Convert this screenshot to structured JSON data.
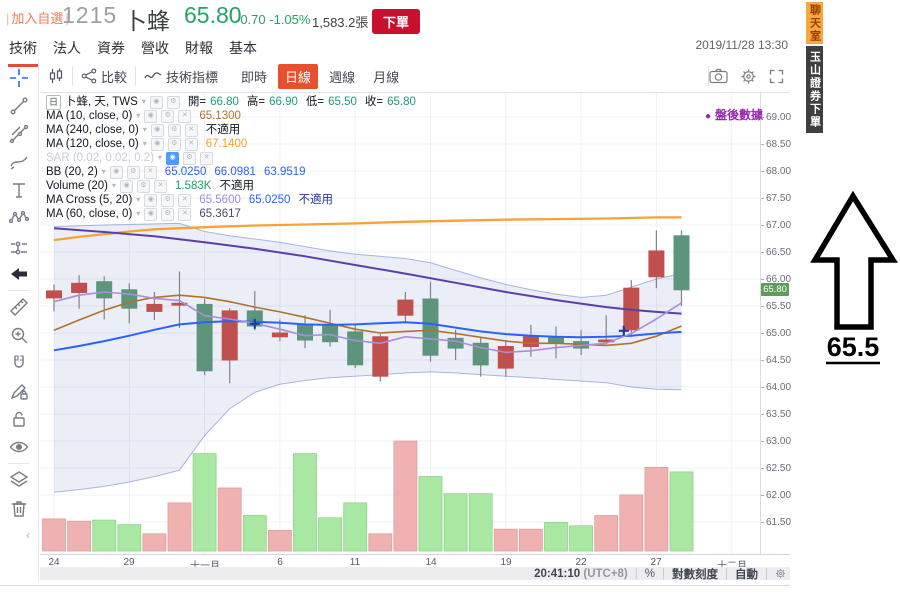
{
  "header": {
    "add_watchlist": "加入自選",
    "code": "1215",
    "name": "卜蜂",
    "price": "65.80",
    "change": "-0.70",
    "change_pct": "-1.05%",
    "volume": "1,583.2張",
    "order_button": "下單",
    "datetime": "2019/11/28 13:30",
    "up_down_color": "#21a567"
  },
  "nav": {
    "tabs": [
      {
        "label": "技術",
        "active": true
      },
      {
        "label": "法人",
        "active": false
      },
      {
        "label": "資券",
        "active": false
      },
      {
        "label": "營收",
        "active": false
      },
      {
        "label": "財報",
        "active": false
      },
      {
        "label": "基本",
        "active": false
      }
    ]
  },
  "chart_toolbar": {
    "compare": "比較",
    "indicators": "技術指標",
    "intervals": [
      {
        "label": "即時",
        "active": false
      },
      {
        "label": "日線",
        "active": true
      },
      {
        "label": "週線",
        "active": false
      },
      {
        "label": "月線",
        "active": false
      }
    ],
    "active_color": "#e8502d",
    "icons": [
      "camera-icon",
      "gear-icon",
      "fullscreen-icon"
    ]
  },
  "sidebar_tools": [
    "cursor-crosshair",
    "trend-line",
    "gann-fibonacci",
    "brush",
    "text",
    "xabcd-pattern",
    "forecast",
    "arrow-marker",
    "ruler",
    "zoom-in",
    "magnet",
    "drawing-lock",
    "lock",
    "hide-drawings",
    "layers",
    "remove-drawings"
  ],
  "legend": {
    "interval_badge": "日",
    "title": "卜蜂, 天, TWS",
    "ohlc": [
      {
        "k": "開=",
        "v": "66.80"
      },
      {
        "k": "高=",
        "v": "66.90"
      },
      {
        "k": "低=",
        "v": "65.50"
      },
      {
        "k": "收=",
        "v": "65.80"
      }
    ],
    "rows": [
      {
        "name": "MA (10, close, 0)",
        "hidden": false,
        "values": [
          {
            "t": "65.1300",
            "c": "#b0732a"
          }
        ]
      },
      {
        "name": "MA (240, close, 0)",
        "hidden": false,
        "values": [
          {
            "t": "不適用",
            "c": "#131722"
          }
        ]
      },
      {
        "name": "MA (120, close, 0)",
        "hidden": false,
        "values": [
          {
            "t": "67.1400",
            "c": "#f59e2c"
          }
        ]
      },
      {
        "name": "SAR (0.02, 0.02, 0.2)",
        "hidden": true,
        "values": []
      },
      {
        "name": "BB (20, 2)",
        "hidden": false,
        "values": [
          {
            "t": "65.0250",
            "c": "#2962ff"
          },
          {
            "t": "66.0981",
            "c": "#2962ff"
          },
          {
            "t": "63.9519",
            "c": "#2962ff"
          }
        ]
      },
      {
        "name": "Volume (20)",
        "hidden": false,
        "values": [
          {
            "t": "1.583K",
            "c": "#23a05c"
          },
          {
            "t": "不適用",
            "c": "#131722"
          }
        ]
      },
      {
        "name": "MA Cross (5, 20)",
        "hidden": false,
        "values": [
          {
            "t": "65.5600",
            "c": "#9f8ce0"
          },
          {
            "t": "65.0250",
            "c": "#2962ff"
          },
          {
            "t": "不適用",
            "c": "#283593"
          }
        ]
      },
      {
        "name": "MA (60, close, 0)",
        "hidden": false,
        "values": [
          {
            "t": "65.3617",
            "c": "#4f4a63"
          }
        ]
      }
    ]
  },
  "after_hours_label": "盤後數據",
  "side_tabs": {
    "chat": "聊天室",
    "broker": "玉山證券下單"
  },
  "annotation": {
    "arrow_direction": "up",
    "value": "65.5"
  },
  "bottom_bar": {
    "time": "20:41:10",
    "timezone": "(UTC+8)",
    "percent": "%",
    "log_scale": "對數刻度",
    "auto": "自動"
  },
  "chart_data": {
    "type": "candlestick+volume",
    "title": "1215 卜蜂 日線 (TWS)",
    "grid": true,
    "up_color": "#c0504e",
    "down_color": "#5d957c",
    "last_price": "65.80",
    "y_axis": {
      "min": 61.5,
      "max": 69,
      "step": 0.5,
      "labels": [
        "69.00",
        "68.50",
        "68.00",
        "67.50",
        "67.00",
        "66.50",
        "66.00",
        "65.50",
        "65.00",
        "64.50",
        "64.00",
        "63.50",
        "63.00",
        "62.50",
        "62.00",
        "61.50"
      ]
    },
    "x_labels": [
      {
        "index": 0,
        "label": "24"
      },
      {
        "index": 3,
        "label": "29"
      },
      {
        "index": 6,
        "label": "十一月"
      },
      {
        "index": 9,
        "label": "6"
      },
      {
        "index": 12,
        "label": "11"
      },
      {
        "index": 15,
        "label": "14"
      },
      {
        "index": 18,
        "label": "19"
      },
      {
        "index": 21,
        "label": "22"
      },
      {
        "index": 24,
        "label": "27"
      },
      {
        "index": 27,
        "label": "十二月"
      }
    ],
    "candles": [
      {
        "date": "10/24",
        "o": 65.65,
        "h": 65.9,
        "l": 65.4,
        "c": 65.78
      },
      {
        "date": "10/25",
        "o": 65.75,
        "h": 66.07,
        "l": 65.45,
        "c": 65.92
      },
      {
        "date": "10/28",
        "o": 65.95,
        "h": 66.05,
        "l": 65.25,
        "c": 65.65
      },
      {
        "date": "10/29",
        "o": 65.8,
        "h": 65.92,
        "l": 65.18,
        "c": 65.46
      },
      {
        "date": "10/30",
        "o": 65.4,
        "h": 65.76,
        "l": 65.24,
        "c": 65.53
      },
      {
        "date": "10/31",
        "o": 65.53,
        "h": 66.14,
        "l": 65.09,
        "c": 65.55
      },
      {
        "date": "11/01",
        "o": 65.53,
        "h": 65.63,
        "l": 64.22,
        "c": 64.3
      },
      {
        "date": "11/04",
        "o": 64.5,
        "h": 65.46,
        "l": 64.07,
        "c": 65.41
      },
      {
        "date": "11/05",
        "o": 65.41,
        "h": 65.78,
        "l": 65.05,
        "c": 65.13
      },
      {
        "date": "11/06",
        "o": 64.93,
        "h": 65.25,
        "l": 64.85,
        "c": 65.0
      },
      {
        "date": "11/07",
        "o": 65.15,
        "h": 65.33,
        "l": 64.72,
        "c": 64.87
      },
      {
        "date": "11/08",
        "o": 65.13,
        "h": 65.43,
        "l": 64.75,
        "c": 64.84
      },
      {
        "date": "11/11",
        "o": 65.02,
        "h": 65.15,
        "l": 64.35,
        "c": 64.41
      },
      {
        "date": "11/12",
        "o": 64.2,
        "h": 64.98,
        "l": 64.1,
        "c": 64.93
      },
      {
        "date": "11/13",
        "o": 65.33,
        "h": 65.76,
        "l": 65.21,
        "c": 65.61
      },
      {
        "date": "11/14",
        "o": 65.63,
        "h": 65.95,
        "l": 64.47,
        "c": 64.59
      },
      {
        "date": "11/15",
        "o": 64.9,
        "h": 65.06,
        "l": 64.5,
        "c": 64.72
      },
      {
        "date": "11/18",
        "o": 64.81,
        "h": 64.93,
        "l": 64.19,
        "c": 64.41
      },
      {
        "date": "11/19",
        "o": 64.35,
        "h": 64.87,
        "l": 64.19,
        "c": 64.75
      },
      {
        "date": "11/20",
        "o": 64.75,
        "h": 65.15,
        "l": 64.56,
        "c": 64.93
      },
      {
        "date": "11/21",
        "o": 64.93,
        "h": 65.12,
        "l": 64.53,
        "c": 64.81
      },
      {
        "date": "11/22",
        "o": 64.84,
        "h": 65.06,
        "l": 64.59,
        "c": 64.72
      },
      {
        "date": "11/25",
        "o": 64.87,
        "h": 65.33,
        "l": 64.79,
        "c": 64.87
      },
      {
        "date": "11/26",
        "o": 65.06,
        "h": 65.98,
        "l": 64.93,
        "c": 65.83
      },
      {
        "date": "11/27",
        "o": 66.04,
        "h": 66.9,
        "l": 65.83,
        "c": 66.52
      },
      {
        "date": "11/28",
        "o": 66.8,
        "h": 66.9,
        "l": 65.5,
        "c": 65.8
      }
    ],
    "volumes": [
      642,
      596,
      619,
      528,
      344,
      963,
      1950,
      1262,
      711,
      413,
      1950,
      665,
      963,
      344,
      2202,
      1491,
      1147,
      1147,
      436,
      436,
      573,
      505,
      711,
      1124,
      1674,
      1583
    ],
    "vol_max": 2202,
    "vol_up_color": "#efb2b0",
    "vol_down_color": "#a9e8a3",
    "overlays": {
      "ma5": {
        "color": "#a88fd8",
        "width": 1.6,
        "points": [
          [
            0,
            65.58
          ],
          [
            1,
            65.7
          ],
          [
            2,
            65.76
          ],
          [
            3,
            65.72
          ],
          [
            4,
            65.64
          ],
          [
            5,
            65.6
          ],
          [
            6,
            65.32
          ],
          [
            7,
            65.26
          ],
          [
            8,
            65.18
          ],
          [
            9,
            65.07
          ],
          [
            10,
            64.95
          ],
          [
            11,
            64.97
          ],
          [
            12,
            64.86
          ],
          [
            13,
            64.81
          ],
          [
            14,
            64.93
          ],
          [
            15,
            64.89
          ],
          [
            16,
            64.85
          ],
          [
            17,
            64.73
          ],
          [
            18,
            64.64
          ],
          [
            19,
            64.67
          ],
          [
            20,
            64.73
          ],
          [
            21,
            64.77
          ],
          [
            22,
            64.81
          ],
          [
            23,
            64.99
          ],
          [
            24,
            65.26
          ],
          [
            25,
            65.56
          ]
        ]
      },
      "ma10": {
        "color": "#b0732a",
        "width": 1.6,
        "points": [
          [
            0,
            65.05
          ],
          [
            1,
            65.24
          ],
          [
            2,
            65.42
          ],
          [
            3,
            65.57
          ],
          [
            4,
            65.66
          ],
          [
            5,
            65.7
          ],
          [
            6,
            65.66
          ],
          [
            7,
            65.58
          ],
          [
            8,
            65.48
          ],
          [
            9,
            65.39
          ],
          [
            10,
            65.29
          ],
          [
            11,
            65.18
          ],
          [
            12,
            65.07
          ],
          [
            13,
            65.0
          ],
          [
            14,
            65.03
          ],
          [
            15,
            65.05
          ],
          [
            16,
            64.99
          ],
          [
            17,
            64.92
          ],
          [
            18,
            64.85
          ],
          [
            19,
            64.81
          ],
          [
            20,
            64.81
          ],
          [
            21,
            64.79
          ],
          [
            22,
            64.77
          ],
          [
            23,
            64.81
          ],
          [
            24,
            64.94
          ],
          [
            25,
            65.13
          ]
        ]
      },
      "ma20": {
        "color": "#2962ff",
        "width": 2,
        "points": [
          [
            0,
            64.68
          ],
          [
            1,
            64.76
          ],
          [
            2,
            64.85
          ],
          [
            3,
            64.95
          ],
          [
            4,
            65.06
          ],
          [
            5,
            65.16
          ],
          [
            6,
            65.2
          ],
          [
            7,
            65.22
          ],
          [
            8,
            65.21
          ],
          [
            9,
            65.19
          ],
          [
            10,
            65.16
          ],
          [
            11,
            65.15
          ],
          [
            12,
            65.16
          ],
          [
            13,
            65.18
          ],
          [
            14,
            65.2
          ],
          [
            15,
            65.17
          ],
          [
            16,
            65.1
          ],
          [
            17,
            65.03
          ],
          [
            18,
            64.98
          ],
          [
            19,
            64.95
          ],
          [
            20,
            64.93
          ],
          [
            21,
            64.92
          ],
          [
            22,
            64.93
          ],
          [
            23,
            64.95
          ],
          [
            24,
            64.99
          ],
          [
            25,
            65.02
          ]
        ]
      },
      "ma60": {
        "color": "#5b3fa8",
        "width": 2,
        "points": [
          [
            0,
            66.94
          ],
          [
            2,
            66.87
          ],
          [
            4,
            66.79
          ],
          [
            6,
            66.68
          ],
          [
            8,
            66.56
          ],
          [
            10,
            66.42
          ],
          [
            12,
            66.26
          ],
          [
            14,
            66.1
          ],
          [
            16,
            65.93
          ],
          [
            18,
            65.76
          ],
          [
            20,
            65.61
          ],
          [
            22,
            65.48
          ],
          [
            23,
            65.43
          ],
          [
            24,
            65.39
          ],
          [
            25,
            65.36
          ]
        ]
      },
      "ma120": {
        "color": "#f7a239",
        "width": 2.3,
        "points": [
          [
            0,
            66.72
          ],
          [
            1,
            66.78
          ],
          [
            2,
            66.83
          ],
          [
            3,
            66.88
          ],
          [
            4,
            66.92
          ],
          [
            6,
            66.96
          ],
          [
            8,
            66.99
          ],
          [
            10,
            67.01
          ],
          [
            12,
            67.03
          ],
          [
            14,
            67.06
          ],
          [
            16,
            67.08
          ],
          [
            18,
            67.1
          ],
          [
            20,
            67.11
          ],
          [
            22,
            67.12
          ],
          [
            24,
            67.14
          ],
          [
            25,
            67.14
          ]
        ]
      },
      "bb_upper": {
        "color": "#6b7fc9",
        "width": 1,
        "points": [
          [
            0,
            66.97
          ],
          [
            2,
            67.0
          ],
          [
            4,
            67.02
          ],
          [
            5,
            67.03
          ],
          [
            6,
            66.88
          ],
          [
            7,
            66.8
          ],
          [
            8,
            66.74
          ],
          [
            9,
            66.68
          ],
          [
            10,
            66.6
          ],
          [
            11,
            66.52
          ],
          [
            12,
            66.46
          ],
          [
            13,
            66.42
          ],
          [
            14,
            66.38
          ],
          [
            15,
            66.3
          ],
          [
            16,
            66.16
          ],
          [
            17,
            66.02
          ],
          [
            18,
            65.9
          ],
          [
            19,
            65.8
          ],
          [
            20,
            65.72
          ],
          [
            21,
            65.66
          ],
          [
            22,
            65.7
          ],
          [
            23,
            65.85
          ],
          [
            24,
            66.0
          ],
          [
            25,
            66.1
          ]
        ]
      },
      "bb_lower": {
        "color": "#6b7fc9",
        "width": 1,
        "points": [
          [
            0,
            62.05
          ],
          [
            1,
            62.1
          ],
          [
            2,
            62.16
          ],
          [
            3,
            62.24
          ],
          [
            4,
            62.34
          ],
          [
            5,
            62.46
          ],
          [
            6,
            63.1
          ],
          [
            7,
            63.6
          ],
          [
            8,
            63.9
          ],
          [
            9,
            64.05
          ],
          [
            10,
            64.12
          ],
          [
            11,
            64.17
          ],
          [
            12,
            64.2
          ],
          [
            13,
            64.23
          ],
          [
            14,
            64.26
          ],
          [
            15,
            64.28
          ],
          [
            16,
            64.26
          ],
          [
            17,
            64.23
          ],
          [
            18,
            64.2
          ],
          [
            19,
            64.17
          ],
          [
            20,
            64.14
          ],
          [
            21,
            64.11
          ],
          [
            22,
            64.08
          ],
          [
            23,
            64.0
          ],
          [
            24,
            63.96
          ],
          [
            25,
            63.95
          ]
        ]
      },
      "bb_fill": {
        "color": "#5b68c0",
        "opacity": 0.12
      }
    },
    "cross_markers": {
      "color": "#1c3d99",
      "points": [
        [
          8,
          65.17
        ],
        [
          22.7,
          65.04
        ]
      ]
    }
  }
}
